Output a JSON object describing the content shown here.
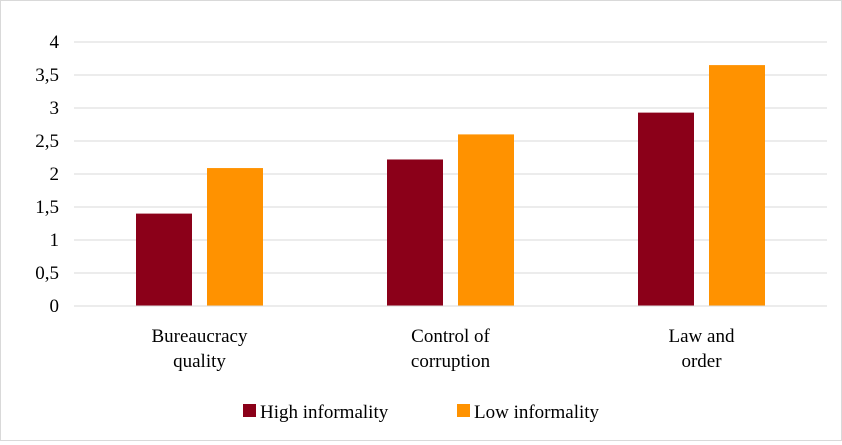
{
  "chart_data": {
    "type": "bar",
    "categories": [
      [
        "Bureaucracy",
        "quality"
      ],
      [
        "Control of",
        "corruption"
      ],
      [
        "Law and",
        "order"
      ]
    ],
    "series": [
      {
        "name": "High informality",
        "color": "#8B0019",
        "values": [
          1.4,
          2.22,
          2.93
        ]
      },
      {
        "name": "Low informality",
        "color": "#FF9200",
        "values": [
          2.09,
          2.6,
          3.65
        ]
      }
    ],
    "y_ticks": [
      "0",
      "0,5",
      "1",
      "1,5",
      "2",
      "2,5",
      "3",
      "3,5",
      "4"
    ],
    "ylim": [
      0,
      4
    ],
    "grid": true,
    "legend_position": "bottom"
  }
}
